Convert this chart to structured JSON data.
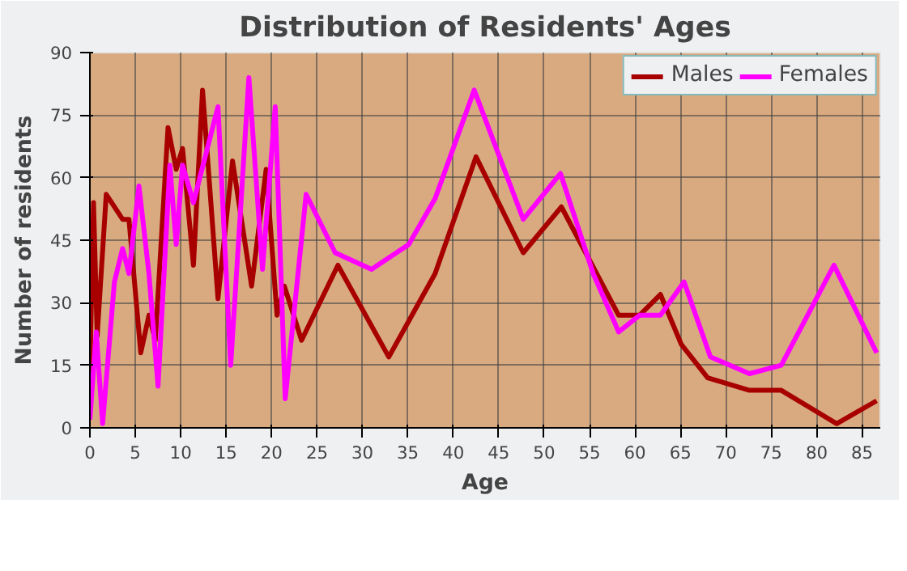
{
  "chart_data": {
    "type": "line",
    "title": "Distribution of Residents' Ages",
    "xlabel": "Age",
    "ylabel": "Number of residents",
    "xlim": [
      0,
      87
    ],
    "xticks": [
      0,
      5,
      10,
      15,
      20,
      25,
      30,
      35,
      40,
      45,
      50,
      55,
      60,
      65,
      70,
      75,
      80,
      85
    ],
    "ylim": [
      0,
      90
    ],
    "yticks": [
      0,
      15,
      30,
      45,
      60,
      75,
      90
    ],
    "grid": true,
    "legend": "top right",
    "series": [
      {
        "name": "Males",
        "color": "#a80000",
        "x": [
          0,
          0.4,
          0.8,
          1.8,
          3.6,
          4.3,
          5.6,
          6.5,
          7.2,
          8.6,
          9.5,
          10.2,
          11.4,
          12.4,
          14.1,
          15.7,
          17.8,
          19.4,
          20.6,
          21.4,
          23.3,
          27.3,
          32.9,
          38,
          42.5,
          47.7,
          51.9,
          58.2,
          60.5,
          62.8,
          65.1,
          68,
          72.6,
          76.1,
          82.2,
          86.6
        ],
        "values": [
          13,
          54,
          22,
          56,
          50,
          50,
          18,
          27,
          21,
          72,
          62,
          67,
          39,
          81,
          31,
          64,
          34,
          62,
          27,
          34,
          21,
          39,
          17,
          37,
          65,
          42,
          53,
          27,
          27,
          32,
          20,
          12,
          9,
          9,
          1,
          6.5
        ]
      },
      {
        "name": "Females",
        "color": "#ff00ff",
        "x": [
          0,
          0.7,
          1.4,
          2.7,
          3.6,
          4.3,
          5.4,
          6.5,
          7.5,
          8.8,
          9.5,
          10.2,
          11.4,
          14.1,
          15.5,
          17.5,
          19,
          20.4,
          21.5,
          23.8,
          27,
          31,
          35.1,
          38,
          42.3,
          47.7,
          51.8,
          55.4,
          58.2,
          60.5,
          62.8,
          65.4,
          68.3,
          72.6,
          76.1,
          81.9,
          86.6
        ],
        "values": [
          2,
          23,
          1,
          35,
          43,
          37,
          58,
          37,
          10,
          63,
          44,
          63,
          54,
          77,
          15,
          84,
          38,
          77,
          7,
          56,
          42,
          38,
          44,
          55,
          81,
          50,
          61,
          37,
          23,
          27,
          27,
          35,
          17,
          13,
          15,
          39,
          18
        ]
      }
    ]
  }
}
